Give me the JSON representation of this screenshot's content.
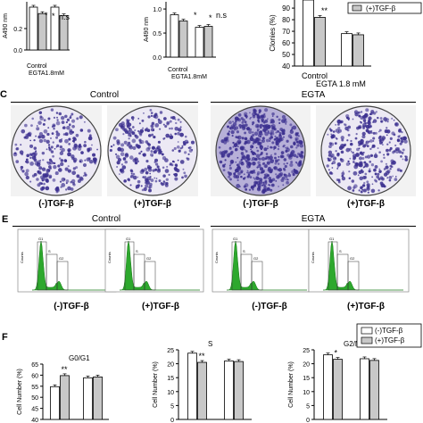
{
  "panel_letters": {
    "c": "C",
    "e": "E",
    "f": "F"
  },
  "groups": {
    "control": "Control",
    "egta": "EGTA"
  },
  "treatments": {
    "minus": "(-)TGF-β",
    "plus": "(+)TGF-β"
  },
  "colors": {
    "white_bar": "#ffffff",
    "gray_bar": "#c8c8c8",
    "stain": "#3b2f8f",
    "histogram": "#2da82d"
  },
  "flow_small": {
    "peaks": [
      "G1",
      "G2",
      "S"
    ],
    "yaxis": "Counts"
  },
  "chart_data": [
    {
      "type": "bar",
      "panel": "A-left",
      "ylabel": "A490 nm",
      "yticks": [
        "0.2",
        "0.0"
      ],
      "categories": [
        "Control",
        "EGTA1.8mM"
      ],
      "series": [
        {
          "values": [
            0.4,
            0.4
          ]
        },
        {
          "values": [
            0.34,
            0.32
          ]
        }
      ],
      "annotations": [
        "*",
        "*",
        "n.s"
      ]
    },
    {
      "type": "bar",
      "panel": "A-mid",
      "ylabel": "A490 nm",
      "yticks": [
        "1.0",
        "0.5",
        "0.0"
      ],
      "categories": [
        "Control",
        "EGTA1.8mM"
      ],
      "series": [
        {
          "values": [
            0.88,
            0.62
          ]
        },
        {
          "values": [
            0.75,
            0.64
          ]
        }
      ],
      "annotations": [
        "*",
        "*",
        "n.s"
      ]
    },
    {
      "type": "bar",
      "panel": "B",
      "ylabel": "Clonies (%)",
      "yticks": [
        "90",
        "80",
        "70",
        "60",
        "50",
        "40"
      ],
      "ylim": [
        40,
        100
      ],
      "categories": [
        "Control",
        "EGTA 1.8 mM"
      ],
      "legend": [
        "(+)TGF-β"
      ],
      "series": [
        {
          "values": [
            100,
            68
          ]
        },
        {
          "values": [
            82,
            67
          ]
        }
      ],
      "annotations": [
        "**"
      ]
    },
    {
      "type": "bar",
      "panel": "F-G0G1",
      "title": "G0/G1",
      "ylabel": "Cell Number (%)",
      "yticks": [
        "65",
        "60",
        "55",
        "50",
        "45",
        "40"
      ],
      "ylim": [
        40,
        65
      ],
      "series": [
        {
          "values": [
            54.8,
            58.8
          ]
        },
        {
          "values": [
            59.8,
            59.2
          ]
        }
      ],
      "annotations": [
        "**"
      ]
    },
    {
      "type": "bar",
      "panel": "F-S",
      "title": "S",
      "ylabel": "Cell Number (%)",
      "yticks": [
        "25",
        "20",
        "15",
        "10",
        "5",
        "0"
      ],
      "ylim": [
        0,
        25
      ],
      "series": [
        {
          "values": [
            23.8,
            21.0
          ]
        },
        {
          "values": [
            20.5,
            20.8
          ]
        }
      ],
      "annotations": [
        "**"
      ]
    },
    {
      "type": "bar",
      "panel": "F-G2M",
      "title": "G2/M",
      "ylabel": "Cell Number (%)",
      "yticks": [
        "25",
        "20",
        "15",
        "10",
        "5",
        "0"
      ],
      "ylim": [
        0,
        25
      ],
      "legend": [
        "(-)TGF-β",
        "(+)TGF-β"
      ],
      "series": [
        {
          "values": [
            23.2,
            21.8
          ]
        },
        {
          "values": [
            21.6,
            21.2
          ]
        }
      ],
      "annotations": [
        "*"
      ]
    }
  ]
}
